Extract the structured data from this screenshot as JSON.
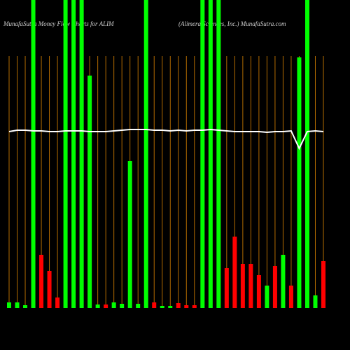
{
  "chart_data": {
    "type": "bar",
    "title": "MunafaSutra  Money Flow  Charts for ALIM",
    "subtitle": "(Alimera Sciences, Inc.) MunafaSutra.com",
    "categories": [
      null,
      null,
      null,
      null,
      null,
      null,
      null,
      null,
      null,
      null,
      null,
      null,
      null,
      null,
      null,
      null,
      null,
      null,
      null,
      null,
      null,
      null,
      null,
      null,
      null,
      null,
      null,
      null,
      null,
      null,
      null,
      null,
      null,
      null,
      null,
      null,
      null,
      null,
      null,
      null
    ],
    "values": [
      8,
      8,
      4,
      440,
      76,
      53,
      15,
      440,
      440,
      440,
      332,
      5,
      5,
      8,
      6,
      210,
      6,
      440,
      8,
      3,
      3,
      7,
      4,
      4,
      440,
      440,
      440,
      57,
      102,
      63,
      63,
      47,
      32,
      60,
      76,
      32,
      358,
      440,
      18,
      67
    ],
    "colors": [
      "#00ff00",
      "#00ff00",
      "#00ff00",
      "#00ff00",
      "#ff0000",
      "#ff0000",
      "#ff0000",
      "#00ff00",
      "#00ff00",
      "#00ff00",
      "#00ff00",
      "#00ff00",
      "#ff0000",
      "#00ff00",
      "#00ff00",
      "#00ff00",
      "#00ff00",
      "#00ff00",
      "#ff0000",
      "#00ff00",
      "#00ff00",
      "#ff0000",
      "#ff0000",
      "#ff0000",
      "#00ff00",
      "#00ff00",
      "#00ff00",
      "#ff0000",
      "#ff0000",
      "#ff0000",
      "#ff0000",
      "#ff0000",
      "#00ff00",
      "#ff0000",
      "#00ff00",
      "#ff0000",
      "#00ff00",
      "#00ff00",
      "#00ff00",
      "#ff0000"
    ],
    "line_values": [
      252,
      254,
      254,
      253,
      253,
      252,
      252,
      253,
      253,
      253,
      252,
      252,
      252,
      253,
      254,
      255,
      255,
      255,
      254,
      254,
      253,
      254,
      253,
      254,
      254,
      255,
      254,
      253,
      252,
      252,
      252,
      252,
      251,
      252,
      252,
      253,
      228,
      252,
      253,
      252
    ],
    "line_color": "#ffffff",
    "ylim": [
      0,
      440
    ],
    "grid": true,
    "grid_color": "#b36b00"
  }
}
